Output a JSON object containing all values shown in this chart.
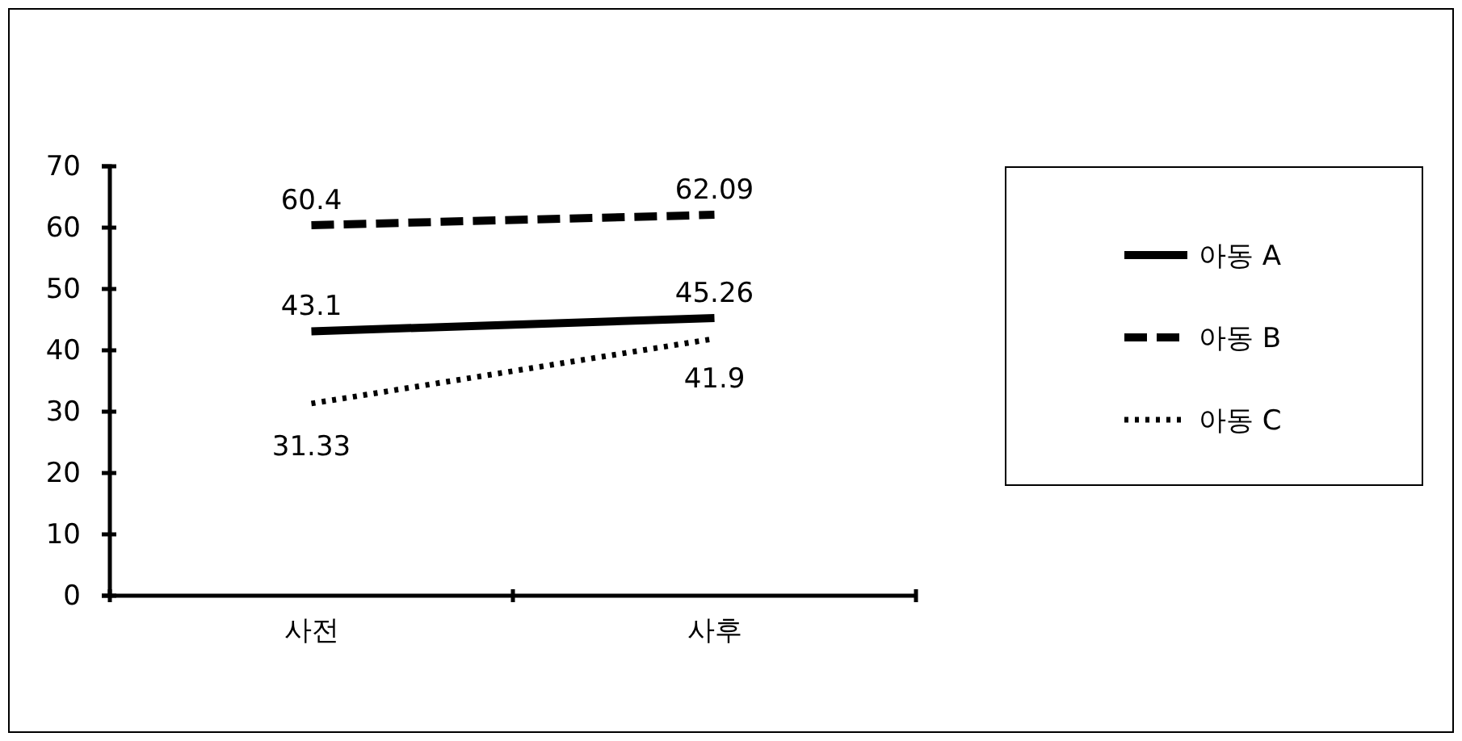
{
  "chart_data": {
    "type": "line",
    "categories": [
      "사전",
      "사후"
    ],
    "series": [
      {
        "name": "아동 A",
        "color": "#000000",
        "line_style": "solid",
        "values": [
          43.1,
          45.26
        ]
      },
      {
        "name": "아동 B",
        "color": "#000000",
        "line_style": "dashed",
        "values": [
          60.4,
          62.09
        ]
      },
      {
        "name": "아동 C",
        "color": "#000000",
        "line_style": "dotted",
        "values": [
          31.33,
          41.9
        ]
      }
    ],
    "ylim": [
      0,
      70
    ],
    "yticks": [
      0,
      10,
      20,
      30,
      40,
      50,
      60,
      70
    ],
    "grid": false,
    "legend": "right",
    "data_labels": true
  }
}
